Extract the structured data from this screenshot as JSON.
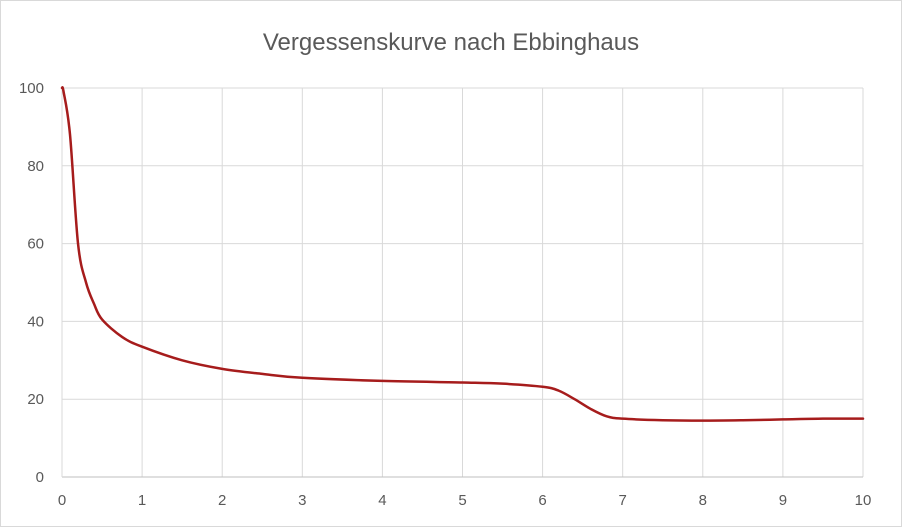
{
  "chart_data": {
    "type": "line",
    "title": "Vergessenskurve nach Ebbinghaus",
    "xlabel": "",
    "ylabel": "",
    "xlim": [
      0,
      10
    ],
    "ylim": [
      0,
      100
    ],
    "x_ticks": [
      "0",
      "1",
      "2",
      "3",
      "4",
      "5",
      "6",
      "7",
      "8",
      "9",
      "10"
    ],
    "y_ticks": [
      "0",
      "20",
      "40",
      "60",
      "80",
      "100"
    ],
    "grid": true,
    "legend": "none",
    "series": [
      {
        "color": "#a61c1c",
        "x": [
          0,
          0.02,
          0.1,
          0.2,
          0.3,
          0.4,
          0.5,
          0.75,
          1,
          1.5,
          2,
          2.5,
          3,
          4,
          5,
          5.5,
          6,
          6.2,
          6.4,
          6.6,
          6.8,
          7,
          7.5,
          8,
          8.5,
          9,
          9.5,
          10
        ],
        "y": [
          100,
          99,
          88,
          60,
          50,
          44.5,
          40.5,
          36,
          33.5,
          30,
          27.8,
          26.5,
          25.5,
          24.7,
          24.3,
          24,
          23.2,
          22.2,
          20,
          17.5,
          15.6,
          15,
          14.6,
          14.5,
          14.6,
          14.8,
          15,
          15
        ]
      }
    ]
  }
}
